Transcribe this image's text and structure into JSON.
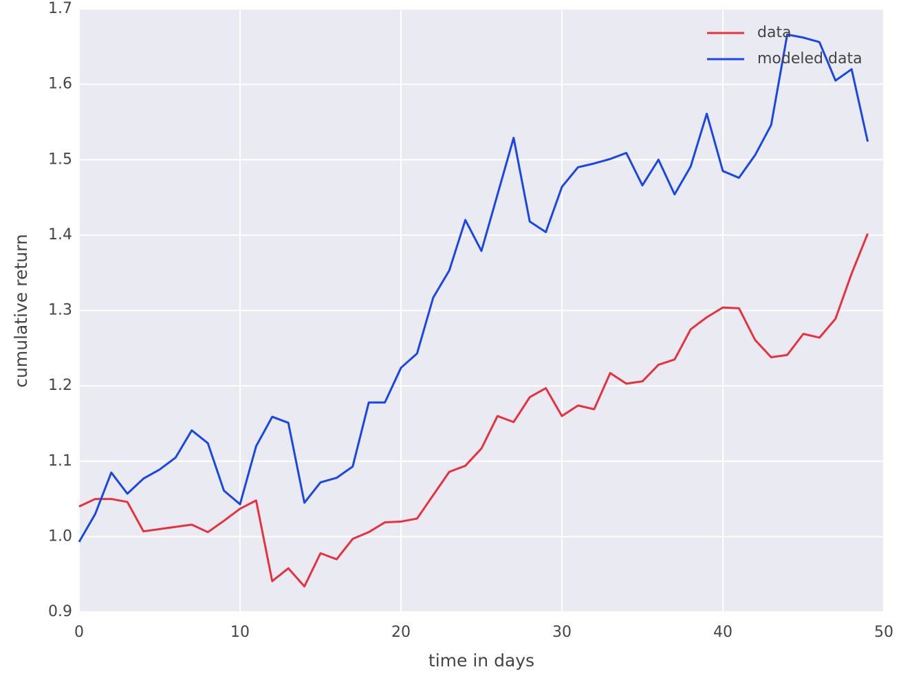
{
  "chart_data": {
    "type": "line",
    "xlabel": "time in days",
    "ylabel": "cumulative return",
    "x": [
      0,
      1,
      2,
      3,
      4,
      5,
      6,
      7,
      8,
      9,
      10,
      11,
      12,
      13,
      14,
      15,
      16,
      17,
      18,
      19,
      20,
      21,
      22,
      23,
      24,
      25,
      26,
      27,
      28,
      29,
      30,
      31,
      32,
      33,
      34,
      35,
      36,
      37,
      38,
      39,
      40,
      41,
      42,
      43,
      44,
      45,
      46,
      47,
      48,
      49
    ],
    "series": [
      {
        "name": "data",
        "color": "#e8303f",
        "values": [
          1.04,
          1.05,
          1.05,
          1.046,
          1.007,
          1.01,
          1.013,
          1.016,
          1.006,
          1.021,
          1.037,
          1.048,
          0.941,
          0.958,
          0.934,
          0.978,
          0.97,
          0.997,
          1.006,
          1.019,
          1.02,
          1.024,
          1.055,
          1.086,
          1.094,
          1.117,
          1.16,
          1.152,
          1.185,
          1.197,
          1.16,
          1.174,
          1.169,
          1.217,
          1.203,
          1.206,
          1.228,
          1.235,
          1.275,
          1.291,
          1.304,
          1.303,
          1.261,
          1.238,
          1.241,
          1.269,
          1.264,
          1.289,
          1.349,
          1.402
        ]
      },
      {
        "name": "modeled data",
        "color": "#1846e8",
        "values": [
          0.993,
          1.03,
          1.085,
          1.057,
          1.077,
          1.089,
          1.105,
          1.141,
          1.124,
          1.061,
          1.043,
          1.12,
          1.159,
          1.151,
          1.045,
          1.072,
          1.078,
          1.093,
          1.178,
          1.178,
          1.224,
          1.243,
          1.317,
          1.353,
          1.42,
          1.379,
          1.454,
          1.529,
          1.418,
          1.404,
          1.464,
          1.49,
          1.495,
          1.501,
          1.509,
          1.466,
          1.5,
          1.454,
          1.491,
          1.561,
          1.485,
          1.476,
          1.506,
          1.546,
          1.666,
          1.662,
          1.656,
          1.605,
          1.62,
          1.524
        ]
      }
    ],
    "xlim": [
      0,
      50
    ],
    "xticks": [
      0,
      10,
      20,
      30,
      40,
      50
    ],
    "ylim": [
      0.9,
      1.7
    ],
    "yticks": [
      0.9,
      {
        "value": 1,
        "label": "1.0"
      },
      1.1,
      1.2,
      1.3,
      1.4,
      1.5,
      1.6,
      1.7
    ],
    "grid": true,
    "legend": "upper right"
  }
}
